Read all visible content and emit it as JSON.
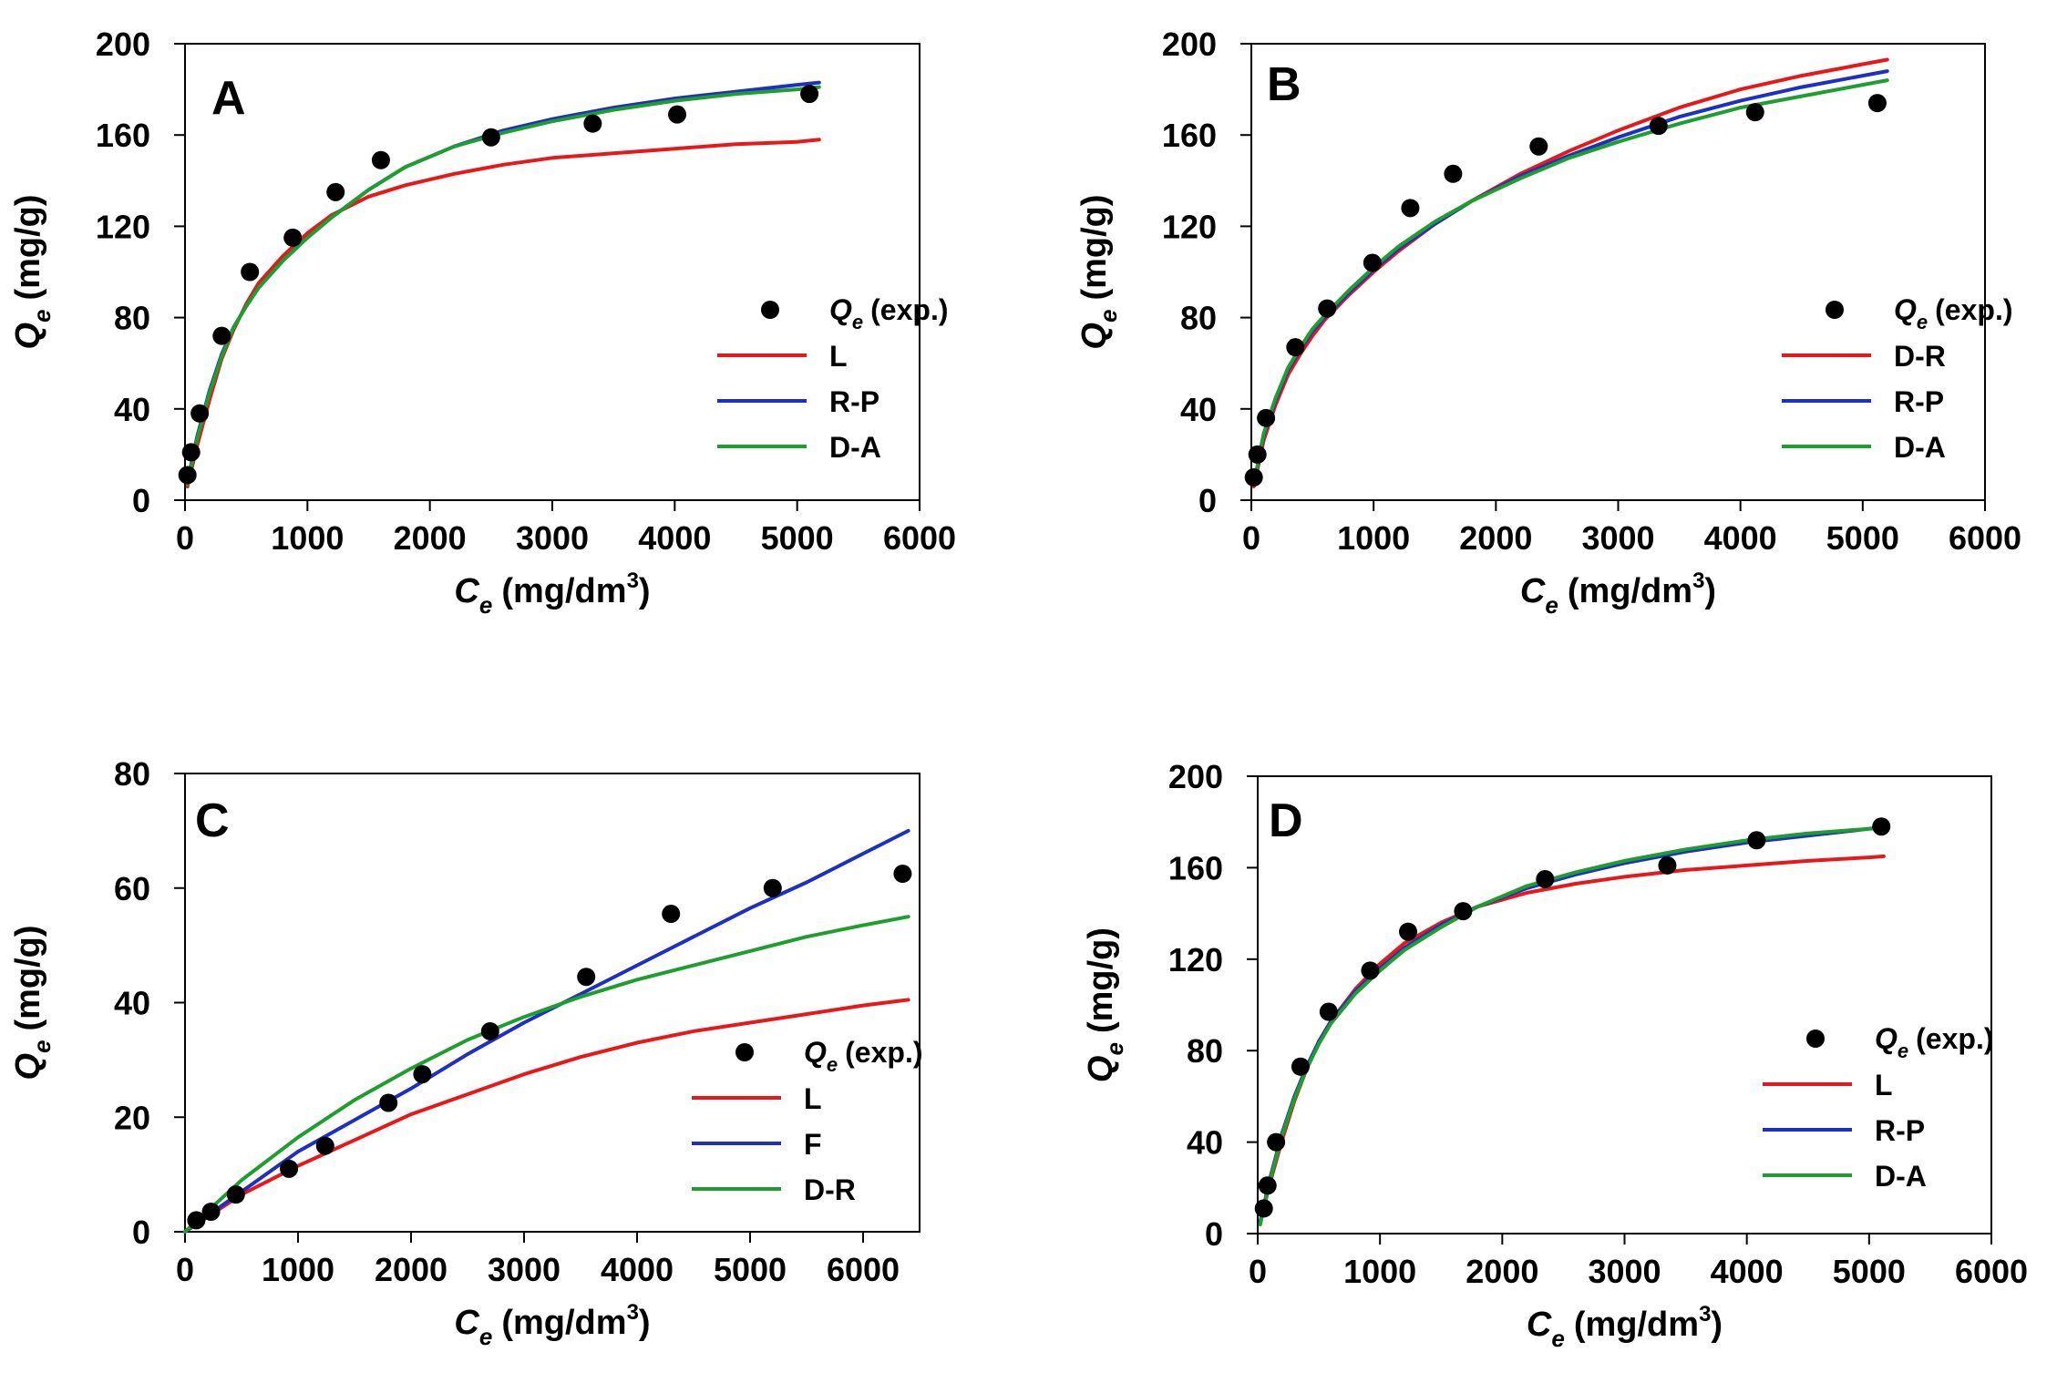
{
  "figure": {
    "panels": [
      "A",
      "B",
      "C",
      "D"
    ]
  },
  "chart_data": [
    {
      "type": "scatter",
      "panel": "A",
      "xlabel": {
        "main": "C",
        "sub": "e",
        "unit": "(mg/dm",
        "sup": "3",
        "close": ")"
      },
      "ylabel": {
        "main": "Q",
        "sub": "e",
        "unit": "(mg/g)"
      },
      "xlim": [
        0,
        6000
      ],
      "ylim": [
        0,
        200
      ],
      "xticks": [
        0,
        1000,
        2000,
        3000,
        4000,
        5000,
        6000
      ],
      "yticks": [
        0,
        40,
        80,
        120,
        160,
        200
      ],
      "legend": {
        "title": "Q",
        "title_sub": "e",
        "title_rest": "(exp.)",
        "placement": "center-right"
      },
      "points": [
        [
          20,
          11
        ],
        [
          50,
          21
        ],
        [
          120,
          38
        ],
        [
          300,
          72
        ],
        [
          530,
          100
        ],
        [
          880,
          115
        ],
        [
          1230,
          135
        ],
        [
          1600,
          149
        ],
        [
          2500,
          159
        ],
        [
          3330,
          165
        ],
        [
          4020,
          169
        ],
        [
          5100,
          178
        ]
      ],
      "series": [
        {
          "name": "L",
          "color": "#e8181a",
          "x": [
            20,
            100,
            200,
            300,
            400,
            500,
            600,
            800,
            1000,
            1200,
            1500,
            1800,
            2200,
            2600,
            3000,
            3500,
            4000,
            4500,
            5000,
            5180
          ],
          "values": [
            6,
            24,
            44,
            62,
            75,
            86,
            95,
            107,
            117,
            125,
            133,
            138,
            143,
            147,
            150,
            152,
            154,
            156,
            157,
            158
          ]
        },
        {
          "name": "R-P",
          "color": "#1f2fc4",
          "x": [
            20,
            100,
            200,
            300,
            400,
            500,
            600,
            800,
            1000,
            1200,
            1500,
            1800,
            2200,
            2600,
            3000,
            3500,
            4000,
            4500,
            5000,
            5180
          ],
          "values": [
            8,
            28,
            48,
            64,
            76,
            85,
            93,
            105,
            115,
            124,
            136,
            146,
            155,
            162,
            167,
            172,
            176,
            179,
            182,
            183
          ]
        },
        {
          "name": "D-A",
          "color": "#1e9e2e",
          "x": [
            20,
            100,
            200,
            300,
            400,
            500,
            600,
            800,
            1000,
            1200,
            1500,
            1800,
            2200,
            2600,
            3000,
            3500,
            4000,
            4500,
            5000,
            5180
          ],
          "values": [
            7,
            27,
            47,
            63,
            76,
            85,
            93,
            105,
            115,
            124,
            136,
            146,
            155,
            161,
            166,
            171,
            175,
            178,
            180,
            181
          ]
        }
      ]
    },
    {
      "type": "scatter",
      "panel": "B",
      "xlabel": {
        "main": "C",
        "sub": "e",
        "unit": "(mg/dm",
        "sup": "3",
        "close": ")"
      },
      "ylabel": {
        "main": "Q",
        "sub": "e",
        "unit": "(mg/g)"
      },
      "xlim": [
        0,
        6000
      ],
      "ylim": [
        0,
        200
      ],
      "xticks": [
        0,
        1000,
        2000,
        3000,
        4000,
        5000,
        6000
      ],
      "yticks": [
        0,
        40,
        80,
        120,
        160,
        200
      ],
      "legend": {
        "title": "Q",
        "title_sub": "e",
        "title_rest": "(exp.)",
        "placement": "center-right"
      },
      "points": [
        [
          20,
          10
        ],
        [
          50,
          20
        ],
        [
          120,
          36
        ],
        [
          360,
          67
        ],
        [
          620,
          84
        ],
        [
          990,
          104
        ],
        [
          1300,
          128
        ],
        [
          1650,
          143
        ],
        [
          2350,
          155
        ],
        [
          3330,
          164
        ],
        [
          4120,
          170
        ],
        [
          5120,
          174
        ]
      ],
      "series": [
        {
          "name": "D-R",
          "color": "#e8181a",
          "x": [
            20,
            100,
            200,
            300,
            400,
            500,
            600,
            800,
            1000,
            1200,
            1500,
            1800,
            2200,
            2600,
            3000,
            3500,
            4000,
            4500,
            5000,
            5200
          ],
          "values": [
            6,
            26,
            42,
            55,
            64,
            72,
            79,
            90,
            100,
            109,
            121,
            131,
            143,
            153,
            162,
            172,
            180,
            186,
            191,
            193
          ]
        },
        {
          "name": "R-P",
          "color": "#1f2fc4",
          "x": [
            20,
            100,
            200,
            300,
            400,
            500,
            600,
            800,
            1000,
            1200,
            1500,
            1800,
            2200,
            2600,
            3000,
            3500,
            4000,
            4500,
            5000,
            5200
          ],
          "values": [
            7,
            28,
            44,
            57,
            66,
            74,
            80,
            91,
            101,
            110,
            121,
            131,
            142,
            151,
            159,
            168,
            175,
            181,
            186,
            188
          ]
        },
        {
          "name": "D-A",
          "color": "#1e9e2e",
          "x": [
            20,
            100,
            200,
            300,
            400,
            500,
            600,
            800,
            1000,
            1200,
            1500,
            1800,
            2200,
            2600,
            3000,
            3500,
            4000,
            4500,
            5000,
            5200
          ],
          "values": [
            7,
            29,
            45,
            58,
            67,
            75,
            81,
            92,
            102,
            111,
            122,
            131,
            141,
            150,
            157,
            165,
            172,
            177,
            182,
            184
          ]
        }
      ]
    },
    {
      "type": "scatter",
      "panel": "C",
      "xlabel": {
        "main": "C",
        "sub": "e",
        "unit": "(mg/dm",
        "sup": "3",
        "close": ")"
      },
      "ylabel": {
        "main": "Q",
        "sub": "e",
        "unit": "(mg/g)"
      },
      "xlim": [
        0,
        6500
      ],
      "ylim": [
        0,
        80
      ],
      "xticks": [
        0,
        1000,
        2000,
        3000,
        4000,
        5000,
        6000
      ],
      "yticks": [
        0,
        20,
        40,
        60,
        80
      ],
      "legend": {
        "title": "Q",
        "title_sub": "e",
        "title_rest": "(exp.)",
        "placement": "bottom-right"
      },
      "points": [
        [
          100,
          2
        ],
        [
          230,
          3.5
        ],
        [
          450,
          6.5
        ],
        [
          920,
          11
        ],
        [
          1240,
          15
        ],
        [
          1800,
          22.5
        ],
        [
          2100,
          27.5
        ],
        [
          2700,
          35
        ],
        [
          3550,
          44.5
        ],
        [
          4300,
          55.5
        ],
        [
          5200,
          60
        ],
        [
          6350,
          62.5
        ]
      ],
      "series": [
        {
          "name": "L",
          "color": "#e8181a",
          "x": [
            0,
            500,
            1000,
            1500,
            2000,
            2500,
            3000,
            3500,
            4000,
            4500,
            5000,
            5500,
            6000,
            6400
          ],
          "values": [
            0,
            6.5,
            11.5,
            16,
            20.5,
            24,
            27.5,
            30.5,
            33,
            35,
            36.5,
            38,
            39.5,
            40.5
          ]
        },
        {
          "name": "F",
          "color": "#1f2fc4",
          "x": [
            0,
            500,
            1000,
            1500,
            2000,
            2500,
            3000,
            3500,
            4000,
            4500,
            5000,
            5500,
            6000,
            6400
          ],
          "values": [
            0,
            7,
            14,
            19.5,
            25,
            31,
            36.5,
            41.5,
            46.5,
            51.5,
            56.5,
            61,
            66,
            70
          ]
        },
        {
          "name": "D-R",
          "color": "#1e9e2e",
          "x": [
            0,
            500,
            1000,
            1500,
            2000,
            2500,
            3000,
            3500,
            4000,
            4500,
            5000,
            5500,
            6000,
            6400
          ],
          "values": [
            0,
            9,
            16.5,
            23,
            28.5,
            33.5,
            37.5,
            41,
            44,
            46.5,
            49,
            51.5,
            53.5,
            55
          ]
        }
      ]
    },
    {
      "type": "scatter",
      "panel": "D",
      "xlabel": {
        "main": "C",
        "sub": "e",
        "unit": "(mg/dm",
        "sup": "3",
        "close": ")"
      },
      "ylabel": {
        "main": "Q",
        "sub": "e",
        "unit": "(mg/g)"
      },
      "xlim": [
        0,
        6000
      ],
      "ylim": [
        0,
        200
      ],
      "xticks": [
        0,
        1000,
        2000,
        3000,
        4000,
        5000,
        6000
      ],
      "yticks": [
        0,
        40,
        80,
        120,
        160,
        200
      ],
      "legend": {
        "title": "Q",
        "title_sub": "e",
        "title_rest": "(exp.)",
        "placement": "center-right"
      },
      "points": [
        [
          50,
          11
        ],
        [
          80,
          21
        ],
        [
          150,
          40
        ],
        [
          350,
          73
        ],
        [
          580,
          97
        ],
        [
          920,
          115
        ],
        [
          1230,
          132
        ],
        [
          1680,
          141
        ],
        [
          2350,
          155
        ],
        [
          3350,
          161
        ],
        [
          4080,
          172
        ],
        [
          5100,
          178
        ]
      ],
      "series": [
        {
          "name": "L",
          "color": "#e8181a",
          "x": [
            20,
            100,
            200,
            300,
            400,
            500,
            600,
            800,
            1000,
            1200,
            1500,
            1800,
            2200,
            2600,
            3000,
            3500,
            4000,
            4500,
            5000,
            5120
          ],
          "values": [
            5,
            22,
            41,
            58,
            72,
            84,
            93,
            107,
            118,
            127,
            136,
            143,
            149,
            153,
            156,
            159,
            161,
            163,
            164.5,
            165
          ]
        },
        {
          "name": "R-P",
          "color": "#1f2fc4",
          "x": [
            20,
            100,
            200,
            300,
            400,
            500,
            600,
            800,
            1000,
            1200,
            1500,
            1800,
            2200,
            2600,
            3000,
            3500,
            4000,
            4500,
            5000,
            5120
          ],
          "values": [
            5,
            24,
            44,
            60,
            73,
            84,
            93,
            106,
            116,
            125,
            135,
            143,
            151,
            157,
            162,
            167,
            171,
            174,
            177,
            178
          ]
        },
        {
          "name": "D-A",
          "color": "#1e9e2e",
          "x": [
            20,
            100,
            200,
            300,
            400,
            500,
            600,
            800,
            1000,
            1200,
            1500,
            1800,
            2200,
            2600,
            3000,
            3500,
            4000,
            4500,
            5000,
            5120
          ],
          "values": [
            4,
            23,
            43,
            59,
            72,
            83,
            92,
            105,
            115,
            124,
            134,
            143,
            152,
            158,
            163,
            168,
            172,
            175,
            177,
            177.5
          ]
        }
      ]
    }
  ]
}
